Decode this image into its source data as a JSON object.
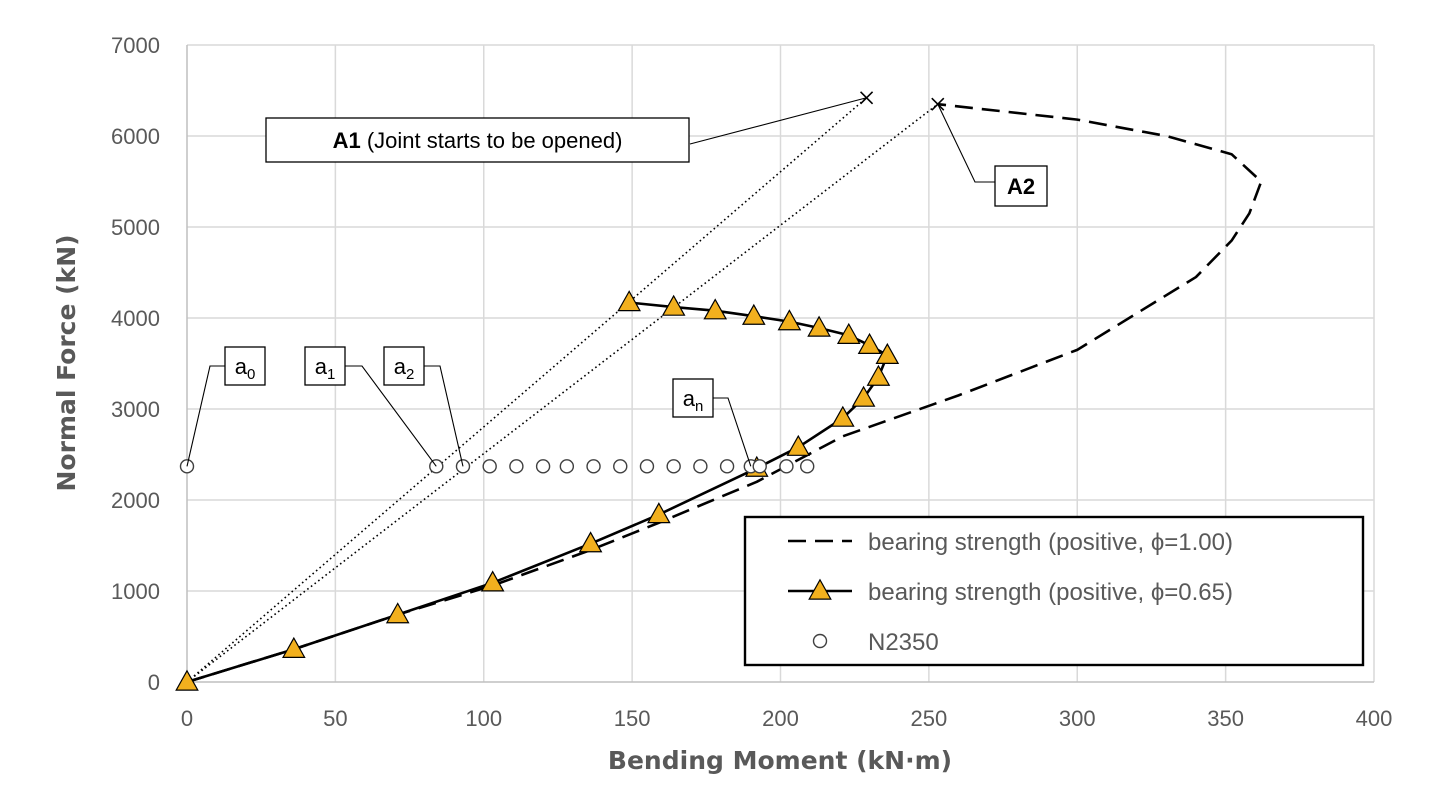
{
  "chart_data": {
    "type": "scatter",
    "xlabel": "Bending Moment (kN·m)",
    "ylabel": "Normal Force (kN)",
    "xlim": [
      0,
      400
    ],
    "ylim": [
      0,
      7000
    ],
    "x_ticks": [
      "0",
      "50",
      "100",
      "150",
      "200",
      "250",
      "300",
      "350",
      "400"
    ],
    "y_ticks": [
      "0",
      "1000",
      "2000",
      "3000",
      "4000",
      "5000",
      "6000",
      "7000"
    ],
    "grid": true,
    "legend_position": "bottom-right",
    "series": [
      {
        "name": "bearing strength (positive, ϕ=1.00)",
        "style": "dashed-line",
        "color": "#000000",
        "x": [
          0,
          36,
          71,
          103,
          136,
          159,
          192,
          221,
          260,
          300,
          340,
          352,
          358,
          362,
          352,
          330,
          300,
          253
        ],
        "y": [
          0,
          360,
          740,
          1060,
          1450,
          1750,
          2200,
          2700,
          3150,
          3650,
          4450,
          4850,
          5150,
          5500,
          5800,
          6000,
          6180,
          6350
        ]
      },
      {
        "name": "bearing strength (positive, ϕ=0.65)",
        "style": "solid-line-triangle",
        "color": "#000000",
        "marker_color": "#F2B01E",
        "x": [
          0,
          36,
          71,
          103,
          136,
          159,
          192,
          206,
          221,
          228,
          233,
          236,
          230,
          223,
          213,
          203,
          191,
          178,
          164,
          149
        ],
        "y": [
          0,
          360,
          740,
          1090,
          1520,
          1840,
          2350,
          2580,
          2900,
          3120,
          3350,
          3590,
          3700,
          3810,
          3890,
          3960,
          4020,
          4080,
          4120,
          4170
        ]
      },
      {
        "name": "N2350",
        "style": "open-circle",
        "color": "#404040",
        "x": [
          0,
          84,
          93,
          102,
          111,
          120,
          128,
          137,
          146,
          155,
          164,
          173,
          182,
          190,
          193,
          202,
          209
        ],
        "y": [
          2370,
          2370,
          2370,
          2370,
          2370,
          2370,
          2370,
          2370,
          2370,
          2370,
          2370,
          2370,
          2370,
          2370,
          2370,
          2370,
          2370
        ]
      }
    ],
    "reference_lines": [
      {
        "from": [
          0,
          0
        ],
        "to": [
          229,
          6420
        ],
        "style": "dotted"
      },
      {
        "from": [
          0,
          0
        ],
        "to": [
          253,
          6350
        ],
        "style": "dotted"
      }
    ],
    "cross_markers": [
      {
        "x": 229,
        "y": 6420
      },
      {
        "x": 253,
        "y": 6350
      }
    ],
    "annotations": [
      {
        "id": "A1",
        "bold": "A1",
        "text": " (Joint starts to be opened)",
        "target": [
          229,
          6420
        ]
      },
      {
        "id": "A2",
        "bold": "A2",
        "text": "",
        "target": [
          253,
          6350
        ]
      },
      {
        "id": "a0",
        "main": "a",
        "sub": "0",
        "target": [
          0,
          2370
        ]
      },
      {
        "id": "a1",
        "main": "a",
        "sub": "1",
        "target": [
          84,
          2370
        ]
      },
      {
        "id": "a2",
        "main": "a",
        "sub": "2",
        "target": [
          93,
          2370
        ]
      },
      {
        "id": "an",
        "main": "a",
        "sub": "n",
        "target": [
          190,
          2370
        ]
      }
    ]
  }
}
